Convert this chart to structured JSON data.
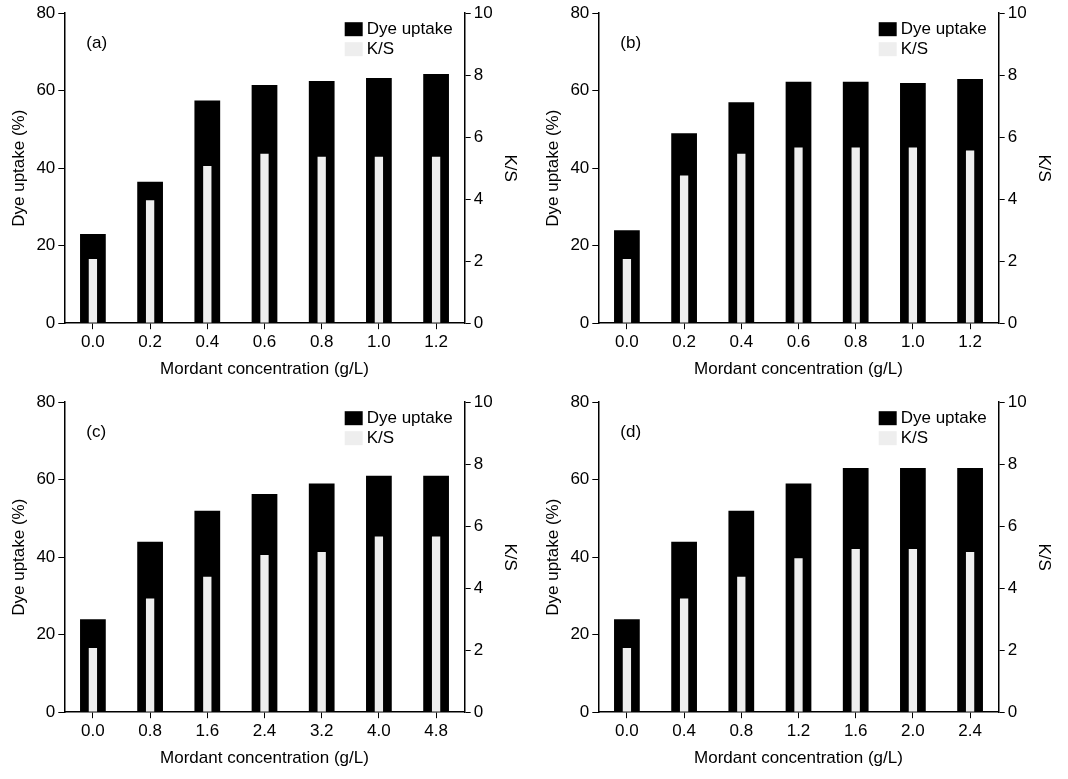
{
  "chart_data": [
    {
      "type": "bar",
      "annotations": [
        "(a)"
      ],
      "categories": [
        "0.0",
        "0.2",
        "0.4",
        "0.6",
        "0.8",
        "1.0",
        "1.2"
      ],
      "xlabel": "Mordant concentration (g/L)",
      "ylabel": "Dye uptake (%)",
      "y2label": "K/S",
      "ylim": [
        0,
        80
      ],
      "yticks": [
        0,
        20,
        40,
        60,
        80
      ],
      "y2lim": [
        0,
        10
      ],
      "y2ticks": [
        0,
        2,
        4,
        6,
        8,
        10
      ],
      "legend": "top right",
      "series": [
        {
          "name": "Dye uptake",
          "color": "#000000",
          "values": [
            23,
            36.5,
            57.5,
            61.5,
            62.5,
            63.3,
            64.3
          ]
        },
        {
          "name": "K/S",
          "color": "#eeeeee",
          "axis": "y2",
          "values": [
            2.1,
            4.0,
            5.1,
            5.5,
            5.4,
            5.4,
            5.4
          ]
        }
      ]
    },
    {
      "type": "bar",
      "annotations": [
        "(b)"
      ],
      "categories": [
        "0.0",
        "0.2",
        "0.4",
        "0.6",
        "0.8",
        "1.0",
        "1.2"
      ],
      "xlabel": "Mordant concentration (g/L)",
      "ylabel": "Dye uptake (%)",
      "y2label": "K/S",
      "ylim": [
        0,
        80
      ],
      "yticks": [
        0,
        20,
        40,
        60,
        80
      ],
      "y2lim": [
        0,
        10
      ],
      "y2ticks": [
        0,
        2,
        4,
        6,
        8,
        10
      ],
      "legend": "top right",
      "series": [
        {
          "name": "Dye uptake",
          "color": "#000000",
          "values": [
            24,
            49,
            57,
            62.3,
            62.3,
            62,
            63
          ]
        },
        {
          "name": "K/S",
          "color": "#eeeeee",
          "axis": "y2",
          "values": [
            2.1,
            4.8,
            5.5,
            5.7,
            5.7,
            5.7,
            5.6
          ]
        }
      ]
    },
    {
      "type": "bar",
      "annotations": [
        "(c)"
      ],
      "categories": [
        "0.0",
        "0.8",
        "1.6",
        "2.4",
        "3.2",
        "4.0",
        "4.8"
      ],
      "xlabel": "Mordant concentration (g/L)",
      "ylabel": "Dye uptake (%)",
      "y2label": "K/S",
      "ylim": [
        0,
        80
      ],
      "yticks": [
        0,
        20,
        40,
        60,
        80
      ],
      "y2lim": [
        0,
        10
      ],
      "y2ticks": [
        0,
        2,
        4,
        6,
        8,
        10
      ],
      "legend": "top right",
      "series": [
        {
          "name": "Dye uptake",
          "color": "#000000",
          "values": [
            24,
            44,
            52,
            56.3,
            59,
            61,
            61
          ]
        },
        {
          "name": "K/S",
          "color": "#eeeeee",
          "axis": "y2",
          "values": [
            2.1,
            3.7,
            4.4,
            5.1,
            5.2,
            5.7,
            5.7
          ]
        }
      ]
    },
    {
      "type": "bar",
      "annotations": [
        "(d)"
      ],
      "categories": [
        "0.0",
        "0.4",
        "0.8",
        "1.2",
        "1.6",
        "2.0",
        "2.4"
      ],
      "xlabel": "Mordant concentration (g/L)",
      "ylabel": "Dye uptake (%)",
      "y2label": "K/S",
      "ylim": [
        0,
        80
      ],
      "yticks": [
        0,
        20,
        40,
        60,
        80
      ],
      "y2lim": [
        0,
        10
      ],
      "y2ticks": [
        0,
        2,
        4,
        6,
        8,
        10
      ],
      "legend": "top right",
      "series": [
        {
          "name": "Dye uptake",
          "color": "#000000",
          "values": [
            24,
            44,
            52,
            59,
            63,
            63,
            63
          ]
        },
        {
          "name": "K/S",
          "color": "#eeeeee",
          "axis": "y2",
          "values": [
            2.1,
            3.7,
            4.4,
            5.0,
            5.3,
            5.3,
            5.2
          ]
        }
      ]
    }
  ]
}
